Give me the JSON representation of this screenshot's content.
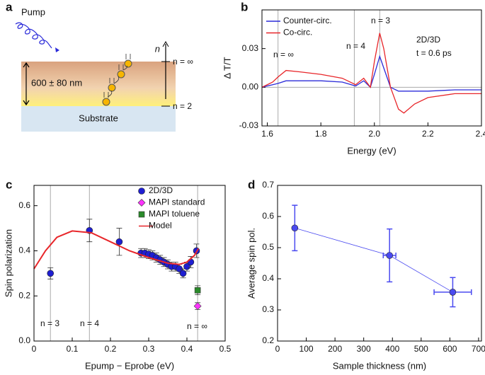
{
  "diagram": {
    "panel_label": "a",
    "pump": "Pump",
    "axis_label": "n",
    "levels": [
      "n = ∞",
      "n = 2"
    ],
    "thickness": "600 ± 80 nm",
    "substrate": "Substrate"
  },
  "chart_data": [
    {
      "type": "line",
      "panel_label": "b",
      "x_label": "Energy (eV)",
      "y_label": "Δ T/T",
      "x": [
        1.58,
        1.62,
        1.64,
        1.67,
        1.72,
        1.8,
        1.88,
        1.93,
        1.96,
        1.985,
        2.0,
        2.02,
        2.035,
        2.06,
        2.09,
        2.11,
        2.15,
        2.2,
        2.3,
        2.4
      ],
      "series": [
        {
          "name": "Counter-circ.",
          "color": "#2b2bd9",
          "values": [
            0,
            0.002,
            0.003,
            0.005,
            0.005,
            0.005,
            0.004,
            0.001,
            0.005,
            0,
            0.01,
            0.024,
            0.015,
            0,
            -0.003,
            -0.003,
            -0.003,
            -0.003,
            -0.002,
            -0.002
          ]
        },
        {
          "name": "Co-circ.",
          "color": "#e8262a",
          "values": [
            0,
            0.004,
            0.008,
            0.013,
            0.012,
            0.01,
            0.007,
            0.002,
            0.007,
            0,
            0.02,
            0.042,
            0.03,
            0,
            -0.017,
            -0.02,
            -0.013,
            -0.008,
            -0.005,
            -0.005
          ]
        }
      ],
      "xlim": [
        1.58,
        2.4
      ],
      "ylim": [
        -0.03,
        0.06
      ],
      "xticks": [
        1.6,
        1.8,
        {
          "value": 2,
          "label": "2.0"
        },
        2.2,
        2.4
      ],
      "yticks": [
        -0.03,
        {
          "value": 0,
          "label": "0.00"
        },
        0.03
      ],
      "vlines": [
        1.64,
        1.925,
        2.02
      ],
      "hlines": [
        0
      ],
      "annotations": [
        "n = ∞",
        "n = 4",
        "n = 3",
        "2D/3D",
        "t = 0.6 ps"
      ],
      "legend": "upper left"
    },
    {
      "type": "scatter",
      "panel_label": "c",
      "x_label": "Epump − Eprobe (eV)",
      "y_label": "Spin polarization",
      "series": [
        {
          "name": "2D/3D",
          "color": "#1f1fd1",
          "marker": "circle",
          "x": [
            0.043,
            0.145,
            0.223,
            0.28,
            0.29,
            0.3,
            0.31,
            0.32,
            0.33,
            0.34,
            0.35,
            0.36,
            0.37,
            0.38,
            0.39,
            0.4,
            0.41,
            0.425
          ],
          "values": [
            0.3,
            0.49,
            0.44,
            0.39,
            0.39,
            0.385,
            0.38,
            0.37,
            0.36,
            0.35,
            0.34,
            0.33,
            0.33,
            0.32,
            0.3,
            0.33,
            0.35,
            0.4
          ],
          "errors": [
            0.025,
            0.05,
            0.06,
            0.02,
            0.02,
            0.02,
            0.02,
            0.02,
            0.02,
            0.02,
            0.02,
            0.02,
            0.02,
            0.02,
            0.02,
            0.02,
            0.025,
            0.03
          ]
        },
        {
          "name": "MAPI standard",
          "color": "#ff33ff",
          "marker": "diamond",
          "x": [
            0.428
          ],
          "values": [
            0.155
          ],
          "errors": [
            0.015
          ]
        },
        {
          "name": "MAPI toluene",
          "color": "#2a8a2a",
          "marker": "square",
          "x": [
            0.428
          ],
          "values": [
            0.225
          ],
          "errors": [
            0.02
          ]
        },
        {
          "name": "Model",
          "color": "#e8262a",
          "marker": "line",
          "x": [
            0,
            0.03,
            0.06,
            0.1,
            0.15,
            0.2,
            0.25,
            0.3,
            0.35,
            0.38,
            0.4,
            0.42,
            0.43
          ],
          "values": [
            0.32,
            0.4,
            0.46,
            0.488,
            0.48,
            0.44,
            0.4,
            0.37,
            0.345,
            0.34,
            0.35,
            0.38,
            0.41
          ]
        }
      ],
      "xlim": [
        0,
        0.5
      ],
      "ylim": [
        0,
        0.69
      ],
      "xticks": [
        0,
        0.1,
        0.2,
        0.3,
        0.4,
        0.5
      ],
      "yticks": [
        {
          "value": 0,
          "label": "0.0"
        },
        0.2,
        0.4,
        0.6
      ],
      "vlines": [
        0.043,
        0.145,
        0.428
      ],
      "annotations": [
        "n = 3",
        "n = 4",
        "n = ∞"
      ],
      "legend": "upper right"
    },
    {
      "type": "scatter",
      "panel_label": "d",
      "x_label": "Sample thickness (nm)",
      "y_label": "Average spin pol.",
      "series": [
        {
          "color": "#4a4af0",
          "marker": "circle",
          "connected": true,
          "x": [
            60,
            390,
            610
          ],
          "values": [
            0.563,
            0.475,
            0.357
          ],
          "errors": [
            0.073,
            0.085,
            0.047
          ],
          "x_errors": [
            0,
            22,
            65
          ]
        }
      ],
      "xlim": [
        0,
        710
      ],
      "ylim": [
        0.2,
        0.7
      ],
      "xticks": [
        0,
        100,
        200,
        300,
        400,
        500,
        600,
        700
      ],
      "yticks": [
        0.2,
        0.3,
        0.4,
        0.5,
        0.6,
        0.7
      ]
    }
  ]
}
